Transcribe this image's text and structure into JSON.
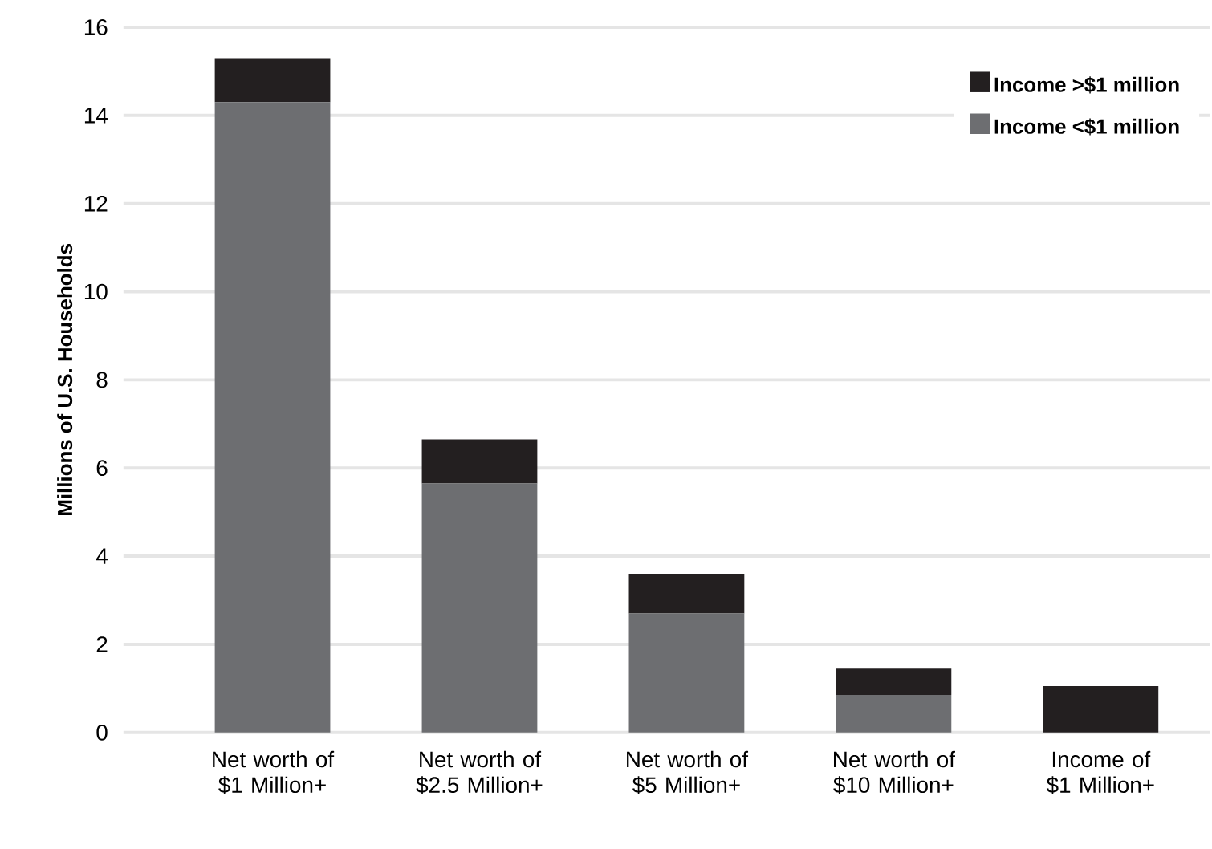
{
  "chart_data": {
    "type": "bar",
    "stacked": true,
    "ylabel": "Millions of U.S. Households",
    "categories": [
      "Net worth of $1 Million+",
      "Net worth of $2.5 Million+",
      "Net worth of $5 Million+",
      "Net worth of $10 Million+",
      "Income of $1 Million+"
    ],
    "series": [
      {
        "name": "Income <$1 million",
        "color": "#6d6e71",
        "values": [
          14.3,
          5.65,
          2.7,
          0.85,
          0
        ]
      },
      {
        "name": "Income >$1 million",
        "color": "#231f20",
        "values": [
          1.0,
          1.0,
          0.9,
          0.6,
          1.05
        ]
      }
    ],
    "ylim": [
      0,
      16
    ],
    "yticks": [
      0,
      2,
      4,
      6,
      8,
      10,
      12,
      14,
      16
    ],
    "grid": "y",
    "legend": "top right"
  }
}
